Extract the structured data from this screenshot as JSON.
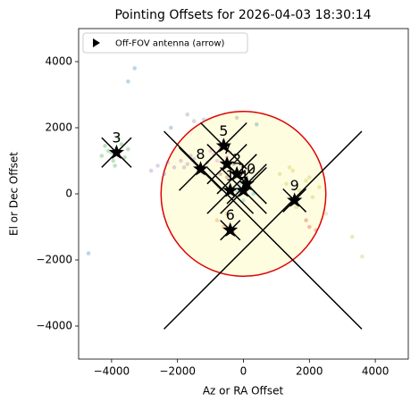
{
  "chart_data": {
    "type": "scatter",
    "title": "Pointing Offsets for 2026-04-03 18:30:14",
    "x_label": "Az or RA Offset",
    "y_label": "El or Dec Offset",
    "xlim": [
      -5000,
      5000
    ],
    "ylim": [
      -5000,
      5000
    ],
    "xticks": [
      {
        "value": -4000,
        "label": "−4000"
      },
      {
        "value": -2000,
        "label": "−2000"
      },
      0,
      2000,
      4000
    ],
    "yticks": [
      {
        "value": -4000,
        "label": "−4000"
      },
      {
        "value": -2000,
        "label": "−2000"
      },
      0,
      2000,
      4000
    ],
    "legend": {
      "label": "Off-FOV antenna (arrow)",
      "loc": "upper left"
    },
    "fov": {
      "center": [
        0,
        0
      ],
      "radius": 2500,
      "edge_color": "#e00000",
      "fill_color": "#fffde0"
    },
    "series": [
      {
        "color": "#2ca02c",
        "x": [
          -4100,
          -3700,
          -3950,
          -3600,
          -4200,
          -3800,
          -4000,
          -3500,
          -3900,
          -4300
        ],
        "y": [
          1300,
          1500,
          1000,
          1100,
          1450,
          1700,
          1250,
          1350,
          850,
          1150
        ]
      },
      {
        "color": "#9467bd",
        "x": [
          -2600,
          -2300,
          -2100,
          -1900,
          -1700,
          -1500,
          -1300,
          -1100,
          -2800,
          -1800,
          -1600,
          -2400
        ],
        "y": [
          850,
          950,
          800,
          1000,
          900,
          1050,
          700,
          950,
          700,
          800,
          1150,
          600
        ]
      },
      {
        "color": "#bcbd22",
        "x": [
          1100,
          1300,
          1500,
          1700,
          1900,
          2100,
          2300,
          1600,
          1400,
          2000,
          3300,
          3600,
          2500
        ],
        "y": [
          600,
          300,
          700,
          100,
          400,
          -100,
          200,
          -400,
          800,
          500,
          -1300,
          -1900,
          -600
        ]
      },
      {
        "color": "#e377c2",
        "x": [
          -900,
          -700,
          -500,
          -800,
          -600,
          -1000,
          -400
        ],
        "y": [
          1200,
          1400,
          1100,
          1000,
          1600,
          1300,
          1250
        ]
      },
      {
        "color": "#8c564b",
        "x": [
          -600,
          -400,
          -700,
          -300,
          -500
        ],
        "y": [
          800,
          700,
          600,
          900,
          500
        ]
      },
      {
        "color": "#17becf",
        "x": [
          -100,
          200,
          100,
          300,
          -200,
          0
        ],
        "y": [
          300,
          200,
          500,
          0,
          100,
          -200
        ]
      },
      {
        "color": "#1f77b4",
        "x": [
          -3500,
          -4700,
          -2200,
          -3300,
          400
        ],
        "y": [
          3400,
          -1800,
          2000,
          3800,
          2100
        ]
      },
      {
        "color": "#ff7f0e",
        "x": [
          -600,
          -300,
          -800,
          -500
        ],
        "y": [
          -1000,
          -1200,
          -800,
          -600
        ]
      },
      {
        "color": "#7f7f7f",
        "x": [
          -1500,
          -200,
          -1700,
          -1200
        ],
        "y": [
          2200,
          2300,
          2400,
          2250
        ]
      },
      {
        "color": "#d62728",
        "x": [
          1900,
          2000,
          2200
        ],
        "y": [
          -800,
          -1000,
          -1100
        ]
      }
    ],
    "antennas": [
      {
        "label": "1",
        "x": -400,
        "y": 100
      },
      {
        "label": "2",
        "x": -200,
        "y": 600
      },
      {
        "label": "3",
        "x": -3850,
        "y": 1250
      },
      {
        "label": "4",
        "x": 0,
        "y": 100
      },
      {
        "label": "5",
        "x": -600,
        "y": 1450
      },
      {
        "label": "6",
        "x": -400,
        "y": -1100
      },
      {
        "label": "7",
        "x": -500,
        "y": 900
      },
      {
        "label": "8",
        "x": -1300,
        "y": 750
      },
      {
        "label": "9",
        "x": 1550,
        "y": -200
      },
      {
        "label": "10",
        "x": 100,
        "y": 300
      }
    ],
    "crosses": [
      {
        "x": -400,
        "y": 100,
        "size": 700
      },
      {
        "x": -200,
        "y": 600,
        "size": 600
      },
      {
        "x": -3850,
        "y": 1250,
        "size": 450
      },
      {
        "x": 0,
        "y": 100,
        "size": 700
      },
      {
        "x": -600,
        "y": 1450,
        "size": 700
      },
      {
        "x": -400,
        "y": -1100,
        "size": 300
      },
      {
        "x": -500,
        "y": 900,
        "size": 600
      },
      {
        "x": -1300,
        "y": 750,
        "size": 650
      },
      {
        "x": 1550,
        "y": -200,
        "size": 350
      },
      {
        "x": 100,
        "y": 300,
        "size": 600
      },
      {
        "x": 590,
        "y": -1100,
        "size": 3000
      }
    ]
  }
}
